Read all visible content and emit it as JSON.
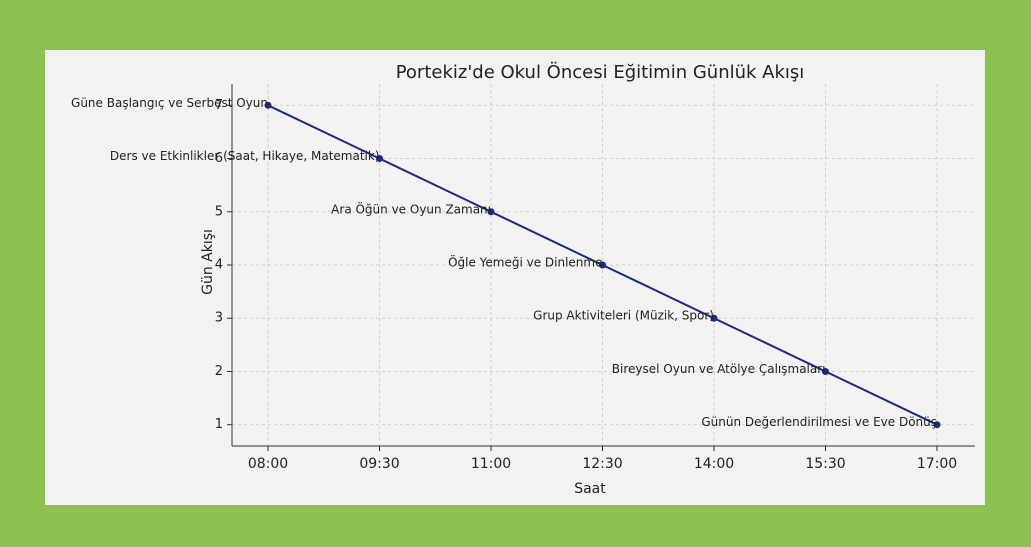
{
  "chart_data": {
    "type": "line",
    "title": "Portekiz'de Okul Öncesi Eğitimin Günlük Akışı",
    "x_label": "Saat",
    "y_label": "Gün Akışı",
    "categories": [
      "08:00",
      "09:30",
      "11:00",
      "12:30",
      "14:00",
      "15:30",
      "17:00"
    ],
    "series": [
      {
        "name": "Gün Akışı",
        "color": "#1f2a7a",
        "values": [
          7,
          6,
          5,
          4,
          3,
          2,
          1
        ]
      }
    ],
    "point_labels": [
      "Güne Başlangıç ve Serbest Oyun",
      "Ders ve Etkinlikler (Saat, Hikaye, Matematik)",
      "Ara Öğün ve Oyun Zamanı",
      "Öğle Yemeği ve Dinlenme",
      "Grup Aktiviteleri (Müzik, Spor)",
      "Bireysel Oyun ve Atölye Çalışmaları",
      "Günün Değerlendirilmesi ve Eve Dönüş"
    ],
    "ylim": [
      0.6,
      7.4
    ],
    "yticks": [
      1,
      2,
      3,
      4,
      5,
      6,
      7
    ],
    "grid": true
  }
}
